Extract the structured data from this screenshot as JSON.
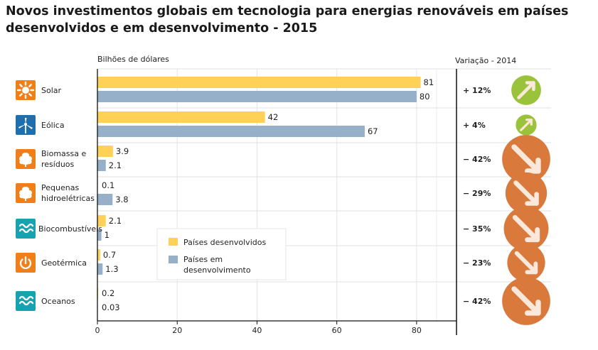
{
  "title": "Novos investimentos globais em tecnologia para energias renováveis em países desenvolvidos e em desenvolvimento - 2015",
  "colors": {
    "developed": "#FFD257",
    "developing": "#97B0CA",
    "icon_orange": "#F07F1A",
    "icon_blue": "#1F6FAF",
    "icon_teal": "#17A2B0",
    "arrow_up": "#9AC33B",
    "arrow_down": "#D97A3C"
  },
  "chart_data": {
    "type": "bar",
    "orientation": "horizontal",
    "title": "Novos investimentos globais em tecnologia para energias renováveis em países desenvolvidos e em desenvolvimento - 2015",
    "unit_label": "Bilhões de dólares",
    "variation_header": "Variação - 2014",
    "categories": [
      {
        "label": "Solar",
        "icon": "sun-icon",
        "icon_color": "orange"
      },
      {
        "label": "Eólica",
        "icon": "wind-turbine-icon",
        "icon_color": "blue"
      },
      {
        "label": "Biomassa e resíduos",
        "icon": "leaf-icon",
        "icon_color": "orange"
      },
      {
        "label": "Pequenas hidroelétricas",
        "icon": "leaf-icon",
        "icon_color": "orange"
      },
      {
        "label": "Biocombustíveis",
        "icon": "waves-icon",
        "icon_color": "teal"
      },
      {
        "label": "Geotérmica",
        "icon": "power-icon",
        "icon_color": "orange"
      },
      {
        "label": "Oceanos",
        "icon": "waves-icon",
        "icon_color": "teal"
      }
    ],
    "series": [
      {
        "name": "Países desenvolvidos",
        "values": [
          81,
          42,
          3.9,
          0.1,
          2.1,
          0.7,
          0.2
        ],
        "labels": [
          "81",
          "42",
          "3.9",
          "0.1",
          "2.1",
          "0.7",
          "0.2"
        ]
      },
      {
        "name": "Países em desenvolvimento",
        "values": [
          80,
          67,
          2.1,
          3.8,
          1,
          1.3,
          0.03
        ],
        "labels": [
          "80",
          "67",
          "2.1",
          "3.8",
          "1",
          "1.3",
          "0.03"
        ]
      }
    ],
    "variation": [
      {
        "label": "+ 12%",
        "value": 12,
        "direction": "up"
      },
      {
        "label": "+ 4%",
        "value": 4,
        "direction": "up"
      },
      {
        "label": "− 42%",
        "value": -42,
        "direction": "down"
      },
      {
        "label": "− 29%",
        "value": -29,
        "direction": "down"
      },
      {
        "label": "− 35%",
        "value": -35,
        "direction": "down"
      },
      {
        "label": "− 23%",
        "value": -23,
        "direction": "down"
      },
      {
        "label": "− 42%",
        "value": -42,
        "direction": "down"
      }
    ],
    "xlim": [
      0,
      90
    ],
    "xticks": [
      0,
      20,
      40,
      60,
      80
    ],
    "grid": true,
    "legend": {
      "placement": "center",
      "entries": [
        {
          "label": "Países desenvolvidos",
          "series": 0
        },
        {
          "label_lines": [
            "Países em",
            "desenvolvimento"
          ],
          "series": 1
        }
      ]
    }
  }
}
